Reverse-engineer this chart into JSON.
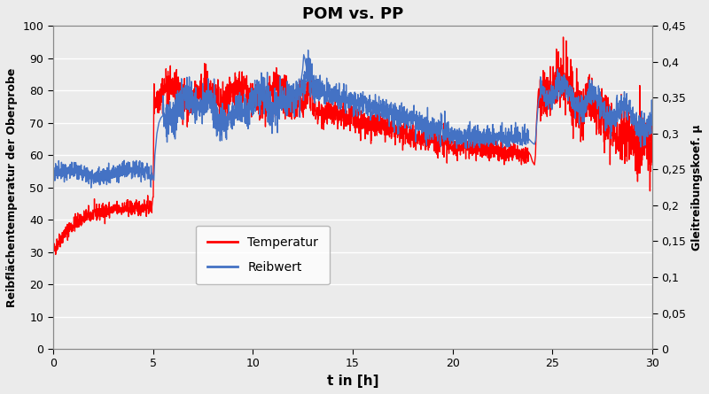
{
  "title": "POM vs. PP",
  "xlabel": "t in [h]",
  "ylabel_left": "Reibflächentemperatur der Oberprobe",
  "ylabel_right": "Gleitreibungskoef. μ",
  "xlim": [
    0,
    30
  ],
  "ylim_left": [
    0,
    100
  ],
  "ylim_right": [
    0,
    0.45
  ],
  "yticks_left": [
    0,
    10,
    20,
    30,
    40,
    50,
    60,
    70,
    80,
    90,
    100
  ],
  "yticks_right": [
    0,
    0.05,
    0.1,
    0.15,
    0.2,
    0.25,
    0.3,
    0.35,
    0.4,
    0.45
  ],
  "ytick_right_labels": [
    "0",
    "0,05",
    "0,1",
    "0,15",
    "0,2",
    "0,25",
    "0,3",
    "0,35",
    "0,4",
    "0,45"
  ],
  "xticks": [
    0,
    5,
    10,
    15,
    20,
    25,
    30
  ],
  "color_temp": "#FF0000",
  "color_reibwert": "#4472C4",
  "legend_temp": "Temperatur",
  "legend_reibwert": "Reibwert",
  "bg_color": "#EBEBEB",
  "plot_bg_color": "#EBEBEB",
  "grid_color": "#FFFFFF",
  "linewidth": 1.0,
  "seed": 42,
  "title_fontsize": 13,
  "label_fontsize": 9,
  "xlabel_fontsize": 11,
  "tick_fontsize": 9
}
